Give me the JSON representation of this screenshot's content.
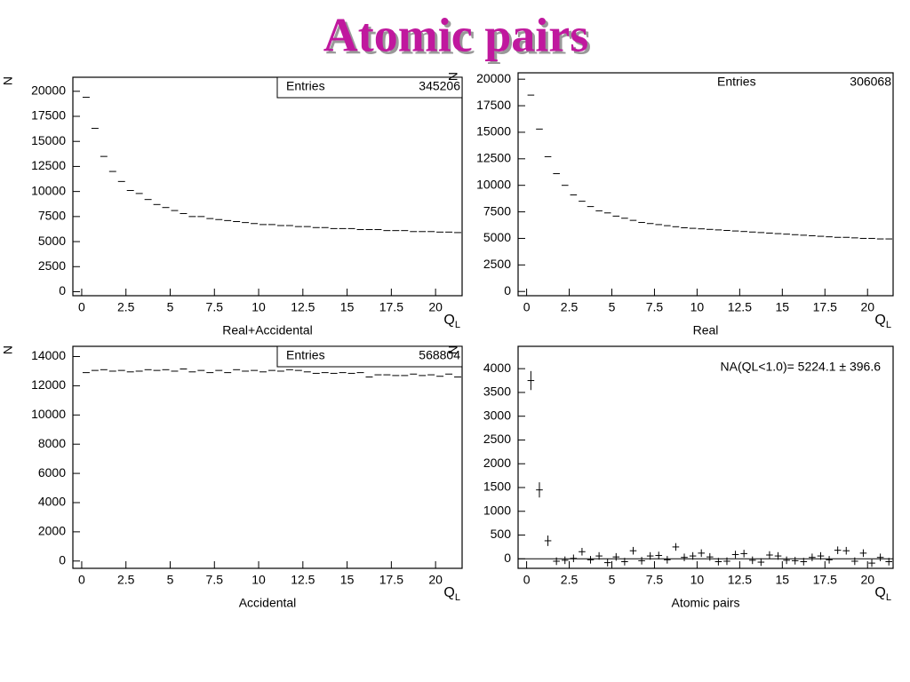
{
  "title": "Atomic pairs",
  "chart_data": [
    {
      "type": "histogram",
      "caption": "Real+Accidental",
      "ylabel": "N",
      "xlabel": "Q",
      "xlabel_sub": "L",
      "entries_label": "Entries",
      "entries": 345206,
      "stat_box": true,
      "xlim": [
        -0.5,
        21.5
      ],
      "xticks": [
        0,
        2.5,
        5,
        7.5,
        10,
        12.5,
        15,
        17.5,
        20
      ],
      "ylim": [
        -400,
        21400
      ],
      "yticks": [
        0,
        2500,
        5000,
        7500,
        10000,
        12500,
        15000,
        17500,
        20000
      ],
      "bins": [
        0,
        0.5,
        1,
        1.5,
        2,
        2.5,
        3,
        3.5,
        4,
        4.5,
        5,
        5.5,
        6,
        6.5,
        7,
        7.5,
        8,
        8.5,
        9,
        9.5,
        10,
        10.5,
        11,
        11.5,
        12,
        12.5,
        13,
        13.5,
        14,
        14.5,
        15,
        15.5,
        16,
        16.5,
        17,
        17.5,
        18,
        18.5,
        19,
        19.5,
        20,
        20.5,
        21,
        21.5
      ],
      "values": [
        19400,
        16300,
        13500,
        12000,
        11000,
        10100,
        9800,
        9200,
        8700,
        8400,
        8100,
        7800,
        7500,
        7500,
        7300,
        7200,
        7100,
        7000,
        6900,
        6800,
        6700,
        6700,
        6600,
        6600,
        6500,
        6500,
        6400,
        6400,
        6300,
        6300,
        6300,
        6200,
        6200,
        6200,
        6100,
        6100,
        6100,
        6000,
        6000,
        6000,
        5950,
        5950,
        5900
      ]
    },
    {
      "type": "histogram",
      "caption": "Real",
      "ylabel": "N",
      "xlabel": "Q",
      "xlabel_sub": "L",
      "entries_label": "Entries",
      "entries": 306068,
      "stat_box": false,
      "xlim": [
        -0.5,
        21.5
      ],
      "xticks": [
        0,
        2.5,
        5,
        7.5,
        10,
        12.5,
        15,
        17.5,
        20
      ],
      "ylim": [
        -400,
        20600
      ],
      "yticks": [
        0,
        2500,
        5000,
        7500,
        10000,
        12500,
        15000,
        17500,
        20000
      ],
      "bins": [
        0,
        0.5,
        1,
        1.5,
        2,
        2.5,
        3,
        3.5,
        4,
        4.5,
        5,
        5.5,
        6,
        6.5,
        7,
        7.5,
        8,
        8.5,
        9,
        9.5,
        10,
        10.5,
        11,
        11.5,
        12,
        12.5,
        13,
        13.5,
        14,
        14.5,
        15,
        15.5,
        16,
        16.5,
        17,
        17.5,
        18,
        18.5,
        19,
        19.5,
        20,
        20.5,
        21,
        21.5
      ],
      "values": [
        18500,
        15300,
        12700,
        11100,
        10000,
        9100,
        8500,
        8000,
        7600,
        7400,
        7100,
        6900,
        6700,
        6500,
        6400,
        6300,
        6200,
        6100,
        6000,
        5950,
        5900,
        5850,
        5800,
        5750,
        5700,
        5650,
        5600,
        5550,
        5500,
        5450,
        5400,
        5350,
        5300,
        5250,
        5200,
        5150,
        5100,
        5100,
        5050,
        5000,
        5000,
        4950,
        4950
      ]
    },
    {
      "type": "histogram",
      "caption": "Accidental",
      "ylabel": "N",
      "xlabel": "Q",
      "xlabel_sub": "L",
      "entries_label": "Entries",
      "entries": 568804,
      "stat_box": true,
      "xlim": [
        -0.5,
        21.5
      ],
      "xticks": [
        0,
        2.5,
        5,
        7.5,
        10,
        12.5,
        15,
        17.5,
        20
      ],
      "ylim": [
        -500,
        14700
      ],
      "yticks": [
        0,
        2000,
        4000,
        6000,
        8000,
        10000,
        12000,
        14000
      ],
      "bins": [
        0,
        0.5,
        1,
        1.5,
        2,
        2.5,
        3,
        3.5,
        4,
        4.5,
        5,
        5.5,
        6,
        6.5,
        7,
        7.5,
        8,
        8.5,
        9,
        9.5,
        10,
        10.5,
        11,
        11.5,
        12,
        12.5,
        13,
        13.5,
        14,
        14.5,
        15,
        15.5,
        16,
        16.5,
        17,
        17.5,
        18,
        18.5,
        19,
        19.5,
        20,
        20.5,
        21,
        21.5
      ],
      "values": [
        12900,
        13050,
        13100,
        13000,
        13050,
        12950,
        13000,
        13100,
        13050,
        13100,
        13000,
        13150,
        12950,
        13050,
        12900,
        13050,
        12900,
        13100,
        13000,
        13050,
        12950,
        13050,
        13000,
        13100,
        13050,
        12950,
        12850,
        12900,
        12850,
        12900,
        12850,
        12900,
        12600,
        12750,
        12750,
        12700,
        12700,
        12800,
        12700,
        12750,
        12650,
        12800,
        12600
      ]
    },
    {
      "type": "histogram",
      "caption": "Atomic pairs",
      "ylabel": "N",
      "xlabel": "Q",
      "xlabel_sub": "L",
      "annotation": "NA(QL<1.0)= 5224.1 ± 396.6",
      "xlim": [
        -0.5,
        21.5
      ],
      "xticks": [
        0,
        2.5,
        5,
        7.5,
        10,
        12.5,
        15,
        17.5,
        20
      ],
      "ylim": [
        -200,
        4470
      ],
      "yticks": [
        0,
        500,
        1000,
        1500,
        2000,
        2500,
        3000,
        3500,
        4000
      ],
      "zero_line": true,
      "bins": [
        0,
        0.5,
        1,
        1.5,
        2,
        2.5,
        3,
        3.5,
        4,
        4.5,
        5,
        5.5,
        6,
        6.5,
        7,
        7.5,
        8,
        8.5,
        9,
        9.5,
        10,
        10.5,
        11,
        11.5,
        12,
        12.5,
        13,
        13.5,
        14,
        14.5,
        15,
        15.5,
        16,
        16.5,
        17,
        17.5,
        18,
        18.5,
        19,
        19.5,
        20,
        20.5,
        21,
        21.5
      ],
      "values": [
        3750,
        1450,
        380,
        -50,
        -30,
        10,
        150,
        -20,
        60,
        -80,
        40,
        -60,
        170,
        -40,
        60,
        70,
        -20,
        250,
        30,
        60,
        120,
        40,
        -60,
        -50,
        90,
        110,
        -30,
        -70,
        80,
        60,
        -30,
        -40,
        -60,
        30,
        60,
        -20,
        180,
        170,
        -50,
        120,
        -90,
        30,
        -60
      ],
      "errors": [
        200,
        160,
        110,
        80,
        80,
        80,
        80,
        80,
        80,
        80,
        80,
        80,
        80,
        80,
        80,
        80,
        80,
        80,
        80,
        80,
        80,
        80,
        80,
        80,
        80,
        80,
        80,
        80,
        80,
        80,
        80,
        80,
        80,
        80,
        80,
        80,
        80,
        80,
        80,
        80,
        80,
        80,
        80
      ]
    }
  ]
}
